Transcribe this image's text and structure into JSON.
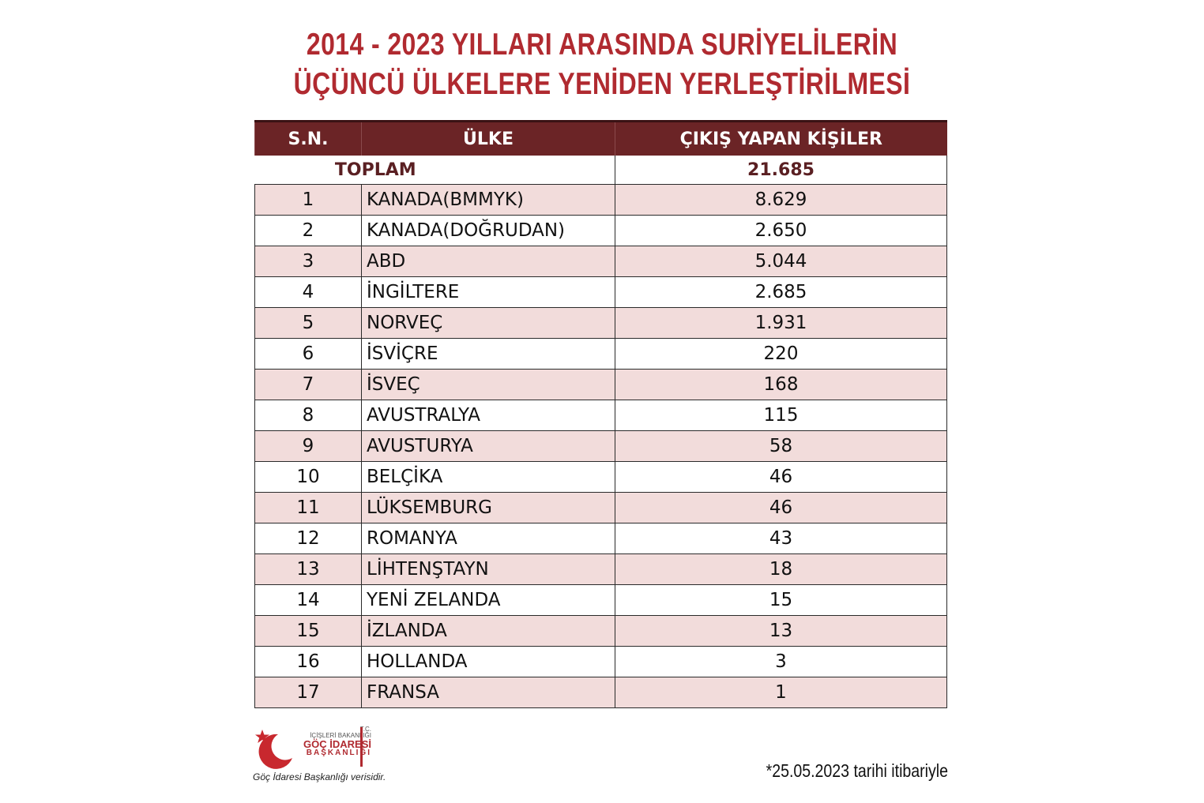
{
  "title": {
    "line1": "2014 - 2023 YILLARI ARASINDA SURİYELİLERİN",
    "line2": "ÜÇÜNCÜ ÜLKELERE YENİDEN YERLEŞTİRİLMESİ"
  },
  "table": {
    "headers": [
      "S.N.",
      "ÜLKE",
      "ÇIKIŞ YAPAN KİŞİLER"
    ],
    "total_label": "TOPLAM",
    "total_value": "21.685",
    "rows": [
      {
        "sn": "1",
        "country": "KANADA(BMMYK)",
        "value": "8.629"
      },
      {
        "sn": "2",
        "country": "KANADA(DOĞRUDAN)",
        "value": "2.650"
      },
      {
        "sn": "3",
        "country": "ABD",
        "value": "5.044"
      },
      {
        "sn": "4",
        "country": "İNGİLTERE",
        "value": "2.685"
      },
      {
        "sn": "5",
        "country": "NORVEÇ",
        "value": "1.931"
      },
      {
        "sn": "6",
        "country": "İSVİÇRE",
        "value": "220"
      },
      {
        "sn": "7",
        "country": "İSVEÇ",
        "value": "168"
      },
      {
        "sn": "8",
        "country": "AVUSTRALYA",
        "value": "115"
      },
      {
        "sn": "9",
        "country": "AVUSTURYA",
        "value": "58"
      },
      {
        "sn": "10",
        "country": "BELÇİKA",
        "value": "46"
      },
      {
        "sn": "11",
        "country": "LÜKSEMBURG",
        "value": "46"
      },
      {
        "sn": "12",
        "country": "ROMANYA",
        "value": "43"
      },
      {
        "sn": "13",
        "country": "LİHTENŞTAYN",
        "value": "18"
      },
      {
        "sn": "14",
        "country": "YENİ ZELANDA",
        "value": "15"
      },
      {
        "sn": "15",
        "country": "İZLANDA",
        "value": "13"
      },
      {
        "sn": "16",
        "country": "HOLLANDA",
        "value": "3"
      },
      {
        "sn": "17",
        "country": "FRANSA",
        "value": "1"
      }
    ]
  },
  "logo": {
    "tc": "T.C.",
    "ministry": "İÇİŞLERİ BAKANLIĞI",
    "name": "GÖÇ İDARESİ",
    "sub": "BAŞKANLIĞI",
    "icon": "crescent-star-icon"
  },
  "source_caption": "Göç İdaresi Başkanlığı verisidir.",
  "footnote": "*25.05.2023 tarihi itibariyle",
  "colors": {
    "title_red": "#b02a30",
    "header_bg": "#6b2426",
    "row_pink": "#f2dcdb",
    "total_text": "#5a1f22"
  }
}
